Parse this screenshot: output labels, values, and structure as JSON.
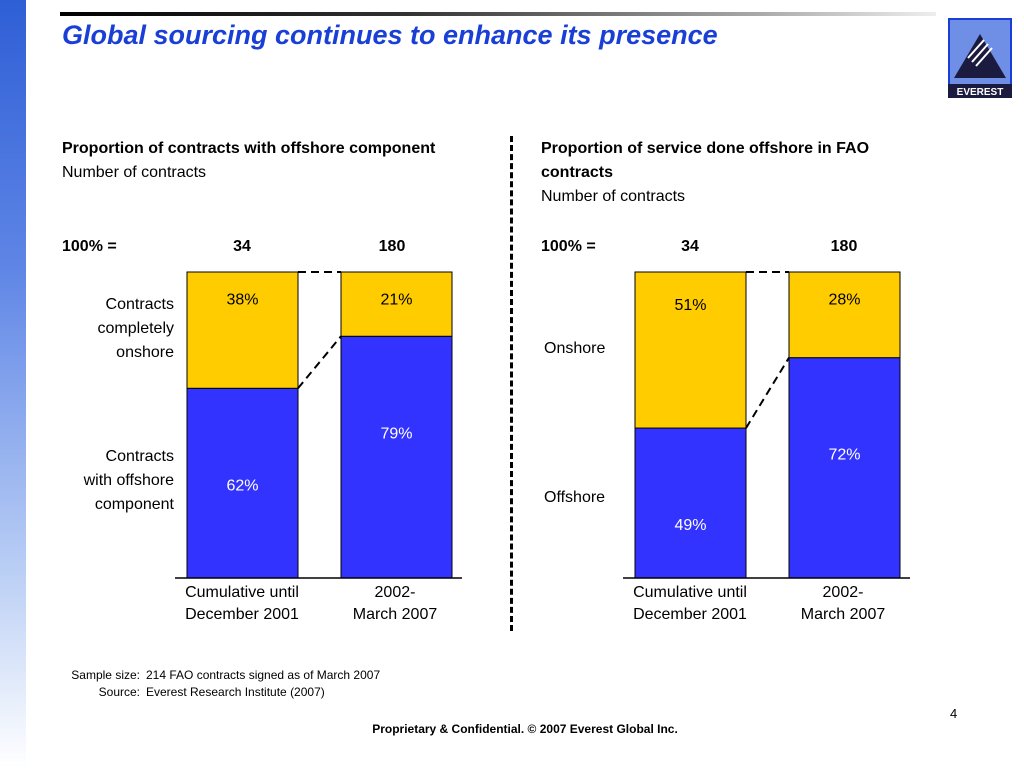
{
  "title": "Global sourcing continues to enhance its presence",
  "logo_text": "EVEREST",
  "colors": {
    "blue": "#3333ff",
    "yellow": "#ffcc00",
    "title": "#1a3fd6"
  },
  "left_panel": {
    "heading_bold": "Proportion of contracts with offshore component",
    "heading_sub": "Number of contracts",
    "total_label": "100% =",
    "totals": [
      "34",
      "180"
    ],
    "row_labels": {
      "top": [
        "Contracts",
        "completely",
        "onshore"
      ],
      "bottom": [
        "Contracts",
        "with offshore",
        "component"
      ]
    }
  },
  "right_panel": {
    "heading_bold": "Proportion of service done offshore in FAO contracts",
    "heading_sub": "Number of contracts",
    "total_label": "100% =",
    "totals": [
      "34",
      "180"
    ],
    "row_labels": {
      "top": [
        "Onshore"
      ],
      "bottom": [
        "Offshore"
      ]
    }
  },
  "chart_data": [
    {
      "type": "bar",
      "stacked": true,
      "categories": [
        [
          "Cumulative until",
          "December 2001"
        ],
        [
          "2002-",
          "March 2007"
        ]
      ],
      "series": [
        {
          "name": "Contracts with offshore component",
          "values": [
            62,
            79
          ],
          "color": "#3333ff"
        },
        {
          "name": "Contracts completely onshore",
          "values": [
            38,
            21
          ],
          "color": "#ffcc00"
        }
      ],
      "value_labels": [
        [
          "62%",
          "79%"
        ],
        [
          "38%",
          "21%"
        ]
      ],
      "ylim": [
        0,
        100
      ]
    },
    {
      "type": "bar",
      "stacked": true,
      "categories": [
        [
          "Cumulative until",
          "December 2001"
        ],
        [
          "2002-",
          "March 2007"
        ]
      ],
      "series": [
        {
          "name": "Offshore",
          "values": [
            49,
            72
          ],
          "color": "#3333ff"
        },
        {
          "name": "Onshore",
          "values": [
            51,
            28
          ],
          "color": "#ffcc00"
        }
      ],
      "value_labels": [
        [
          "49%",
          "72%"
        ],
        [
          "51%",
          "28%"
        ]
      ],
      "ylim": [
        0,
        100
      ]
    }
  ],
  "notes": {
    "sample_key": "Sample size:",
    "sample_val": "214 FAO contracts signed as of March 2007",
    "source_key": "Source:",
    "source_val": "Everest Research Institute (2007)"
  },
  "footer": "Proprietary & Confidential. © 2007 Everest Global Inc.",
  "page_number": "4"
}
